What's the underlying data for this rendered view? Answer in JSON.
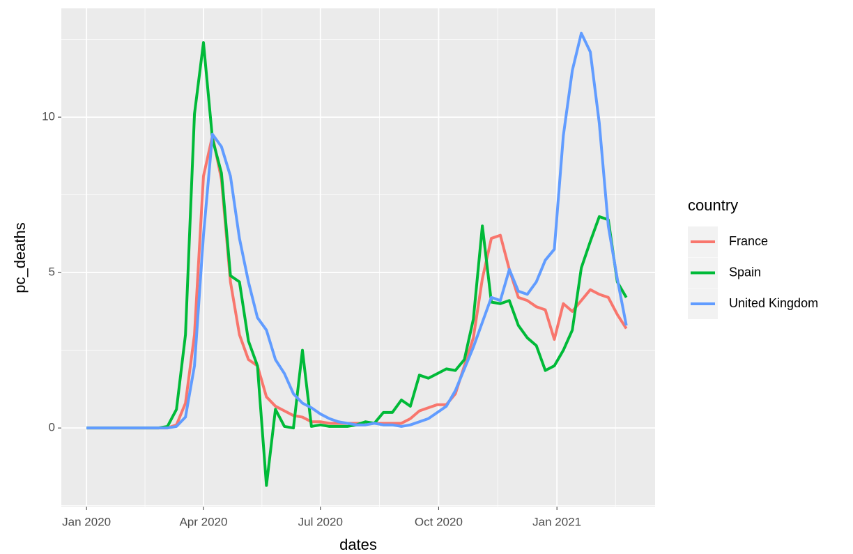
{
  "chart_data": {
    "type": "line",
    "x_label": "dates",
    "y_label": "pc_deaths",
    "legend_title": "country",
    "legend_position": "right",
    "grid": true,
    "x": [
      0,
      1,
      2,
      3,
      4,
      5,
      6,
      7,
      8,
      9,
      10,
      11,
      12,
      13,
      14,
      15,
      16,
      17,
      18,
      19,
      20,
      21,
      22,
      23,
      24,
      25,
      26,
      27,
      28,
      29,
      30,
      31,
      32,
      33,
      34,
      35,
      36,
      37,
      38,
      39,
      40,
      41,
      42,
      43,
      44,
      45,
      46,
      47,
      48,
      49,
      50,
      51,
      52,
      53,
      54,
      55,
      56,
      57,
      58,
      59,
      60
    ],
    "xlim": [
      -2.8,
      63.2
    ],
    "xticks": [
      {
        "value": 0,
        "label": "Jan 2020"
      },
      {
        "value": 13,
        "label": "Apr 2020"
      },
      {
        "value": 26,
        "label": "Jul 2020"
      },
      {
        "value": 39.14,
        "label": "Oct 2020"
      },
      {
        "value": 52.29,
        "label": "Jan 2021"
      }
    ],
    "x_minor_ticks": [
      6.5,
      19.5,
      32.57,
      45.71,
      58.8
    ],
    "ylim": [
      -2.53,
      13.5
    ],
    "yticks": [
      0,
      5,
      10
    ],
    "y_minor_ticks": [
      -2.5,
      2.5,
      7.5,
      12.5
    ],
    "series": [
      {
        "name": "France",
        "color": "#F8766D",
        "values": [
          0,
          0,
          0,
          0,
          0,
          0,
          0,
          0,
          0,
          0,
          0.1,
          0.8,
          3.0,
          8.1,
          9.4,
          8.0,
          4.7,
          3.0,
          2.2,
          2.0,
          1.0,
          0.7,
          0.55,
          0.4,
          0.35,
          0.2,
          0.2,
          0.15,
          0.15,
          0.15,
          0.15,
          0.15,
          0.15,
          0.15,
          0.15,
          0.15,
          0.3,
          0.55,
          0.65,
          0.75,
          0.75,
          1.1,
          2.0,
          2.9,
          4.8,
          6.1,
          6.2,
          5.1,
          4.2,
          4.1,
          3.9,
          3.8,
          2.85,
          4.0,
          3.75,
          4.1,
          4.45,
          4.3,
          4.2,
          3.65,
          3.2
        ]
      },
      {
        "name": "Spain",
        "color": "#00BA38",
        "values": [
          0,
          0,
          0,
          0,
          0,
          0,
          0,
          0,
          0,
          0.05,
          0.6,
          3.0,
          10.1,
          12.4,
          9.3,
          8.2,
          4.9,
          4.7,
          2.8,
          2.0,
          -1.85,
          0.6,
          0.05,
          0.0,
          2.5,
          0.05,
          0.1,
          0.05,
          0.05,
          0.05,
          0.1,
          0.2,
          0.15,
          0.5,
          0.5,
          0.9,
          0.7,
          1.7,
          1.6,
          1.75,
          1.9,
          1.85,
          2.2,
          3.5,
          6.5,
          4.05,
          4.0,
          4.1,
          3.3,
          2.9,
          2.65,
          1.85,
          2.0,
          2.5,
          3.15,
          5.15,
          6.0,
          6.8,
          6.7,
          4.7,
          4.2
        ]
      },
      {
        "name": "United Kingdom",
        "color": "#619CFF",
        "values": [
          0,
          0,
          0,
          0,
          0,
          0,
          0,
          0,
          0,
          0,
          0.05,
          0.35,
          2.0,
          6.2,
          9.45,
          9.05,
          8.1,
          6.1,
          4.7,
          3.55,
          3.15,
          2.2,
          1.75,
          1.1,
          0.8,
          0.65,
          0.45,
          0.3,
          0.2,
          0.15,
          0.1,
          0.1,
          0.15,
          0.1,
          0.1,
          0.05,
          0.1,
          0.2,
          0.3,
          0.5,
          0.7,
          1.2,
          1.9,
          2.6,
          3.4,
          4.2,
          4.1,
          5.1,
          4.4,
          4.3,
          4.7,
          5.4,
          5.75,
          9.4,
          11.5,
          12.7,
          12.1,
          9.8,
          6.5,
          4.8,
          3.3
        ]
      }
    ]
  }
}
